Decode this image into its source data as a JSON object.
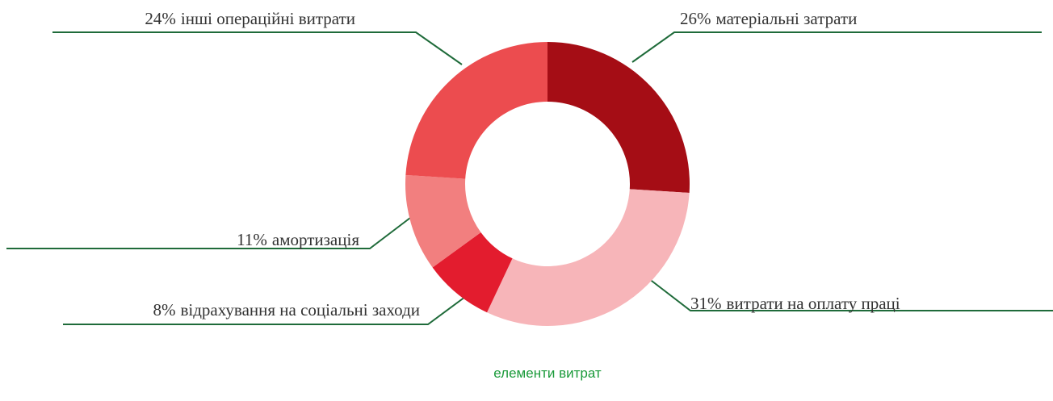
{
  "chart_data": {
    "type": "donut",
    "categories": [
      "матеріальні затрати",
      "витрати на оплату праці",
      "відрахування на соціальні заходи",
      "амортизація",
      "інші операційні витрати"
    ],
    "values": [
      26,
      31,
      8,
      11,
      24
    ],
    "value_labels": [
      "26%",
      "31%",
      "8%",
      "11%",
      "24%"
    ],
    "colors": [
      "#a50d15",
      "#f7b5b9",
      "#e31c2e",
      "#f27f7f",
      "#ec4c4f"
    ],
    "caption": "елементи витрат"
  }
}
